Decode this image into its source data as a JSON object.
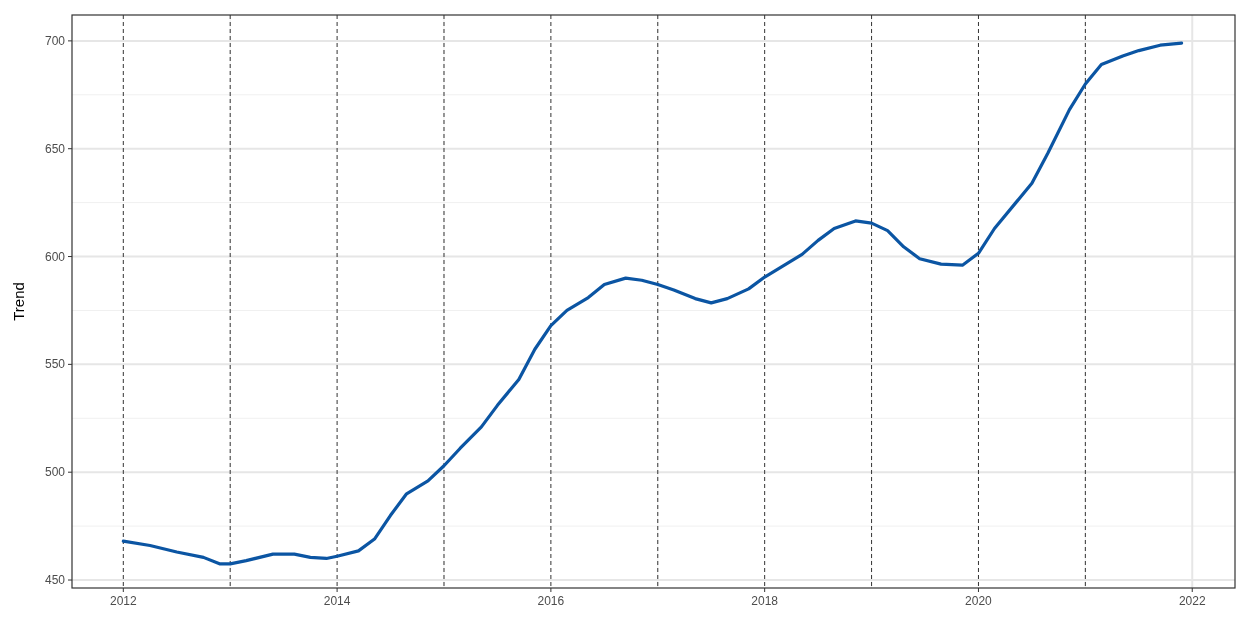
{
  "chart_data": {
    "type": "line",
    "ylabel": "Trend",
    "x": [
      2012.0,
      2012.25,
      2012.5,
      2012.75,
      2012.9,
      2013.0,
      2013.15,
      2013.4,
      2013.6,
      2013.75,
      2013.9,
      2014.0,
      2014.2,
      2014.35,
      2014.5,
      2014.65,
      2014.85,
      2015.0,
      2015.15,
      2015.35,
      2015.5,
      2015.7,
      2015.85,
      2016.0,
      2016.15,
      2016.35,
      2016.5,
      2016.7,
      2016.85,
      2017.0,
      2017.15,
      2017.35,
      2017.5,
      2017.65,
      2017.85,
      2018.0,
      2018.15,
      2018.35,
      2018.5,
      2018.65,
      2018.85,
      2019.0,
      2019.15,
      2019.3,
      2019.45,
      2019.65,
      2019.85,
      2020.0,
      2020.15,
      2020.35,
      2020.5,
      2020.65,
      2020.85,
      2021.0,
      2021.15,
      2021.35,
      2021.5,
      2021.7,
      2021.9
    ],
    "series": [
      {
        "color": "#0b55a3",
        "values": [
          468,
          466,
          463,
          460.5,
          457.5,
          457.5,
          459,
          462,
          462,
          460.5,
          460,
          461,
          463.5,
          469,
          480,
          490,
          496,
          503,
          511,
          521,
          531,
          543,
          557,
          568,
          575,
          581,
          587,
          590,
          589,
          587,
          584.5,
          580.5,
          578.5,
          580.5,
          585,
          590.5,
          595,
          601,
          607.5,
          613,
          616.5,
          615.5,
          612,
          604.5,
          599,
          596.5,
          596,
          601.5,
          613,
          625,
          634,
          648,
          668,
          680,
          689,
          693,
          695.5,
          698,
          699
        ]
      }
    ],
    "xlim": [
      2011.52,
      2022.4
    ],
    "xticks": [
      2012,
      2014,
      2016,
      2018,
      2020,
      2022
    ],
    "ylim": [
      446.3,
      712
    ],
    "yticks": [
      450,
      500,
      550,
      600,
      650,
      700
    ],
    "grid": true,
    "line_style": "solid",
    "marker": "none",
    "ref_lines": [
      {
        "axis": "x",
        "value": 2012,
        "color": "#333333",
        "line_style": "dashed"
      },
      {
        "axis": "x",
        "value": 2013,
        "color": "#333333",
        "line_style": "dashed"
      },
      {
        "axis": "x",
        "value": 2014,
        "color": "#333333",
        "line_style": "dashed"
      },
      {
        "axis": "x",
        "value": 2015,
        "color": "#333333",
        "line_style": "dashed"
      },
      {
        "axis": "x",
        "value": 2016,
        "color": "#333333",
        "line_style": "dashed"
      },
      {
        "axis": "x",
        "value": 2017,
        "color": "#333333",
        "line_style": "dashed"
      },
      {
        "axis": "x",
        "value": 2018,
        "color": "#333333",
        "line_style": "dashed"
      },
      {
        "axis": "x",
        "value": 2019,
        "color": "#333333",
        "line_style": "dashed"
      },
      {
        "axis": "x",
        "value": 2020,
        "color": "#333333",
        "line_style": "dashed"
      },
      {
        "axis": "x",
        "value": 2021,
        "color": "#333333",
        "line_style": "dashed"
      }
    ]
  }
}
